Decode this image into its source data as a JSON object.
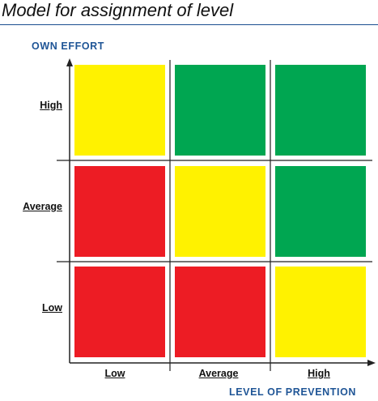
{
  "title": "Model for assignment of level",
  "y_axis": {
    "title": "OWN EFFORT",
    "labels": [
      "High",
      "Average",
      "Low"
    ]
  },
  "x_axis": {
    "title": "LEVEL OF PREVENTION",
    "labels": [
      "Low",
      "Average",
      "High"
    ]
  },
  "colors": {
    "yellow": "#fff200",
    "green": "#00a651",
    "red": "#ed1c24",
    "axis": "#222222",
    "title_rule": "#1a4e8f",
    "axis_title": "#1f5596"
  },
  "cells": [
    [
      "yellow",
      "green",
      "green"
    ],
    [
      "red",
      "yellow",
      "green"
    ],
    [
      "red",
      "red",
      "yellow"
    ]
  ]
}
